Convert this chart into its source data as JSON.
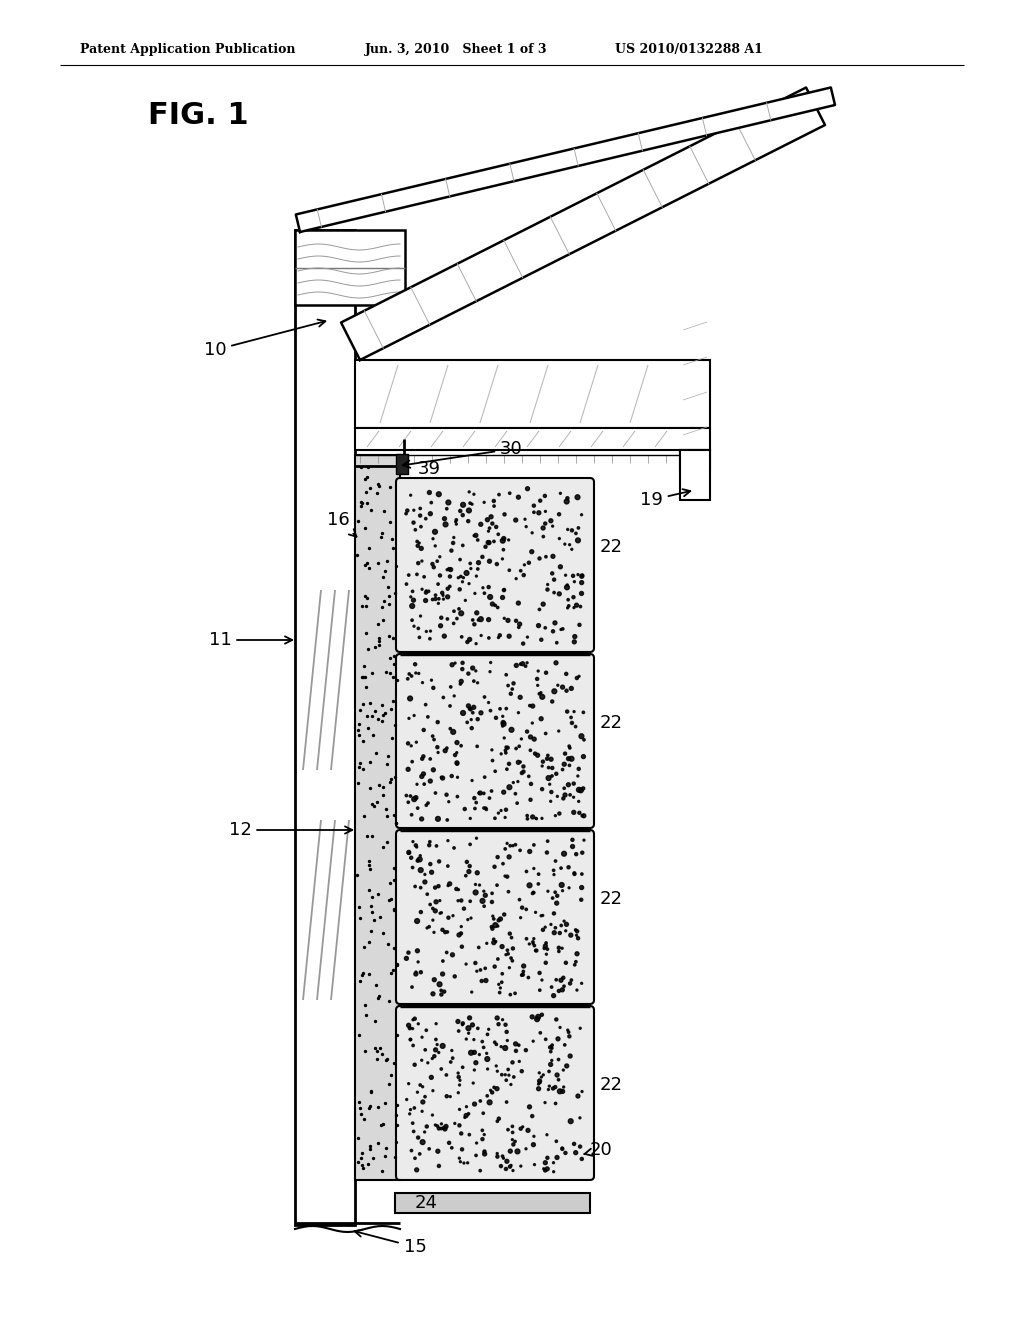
{
  "bg_color": "#ffffff",
  "header_text1": "Patent Application Publication",
  "header_text2": "Jun. 3, 2010   Sheet 1 of 3",
  "header_text3": "US 2010/0132288 A1",
  "fig_label": "FIG. 1"
}
